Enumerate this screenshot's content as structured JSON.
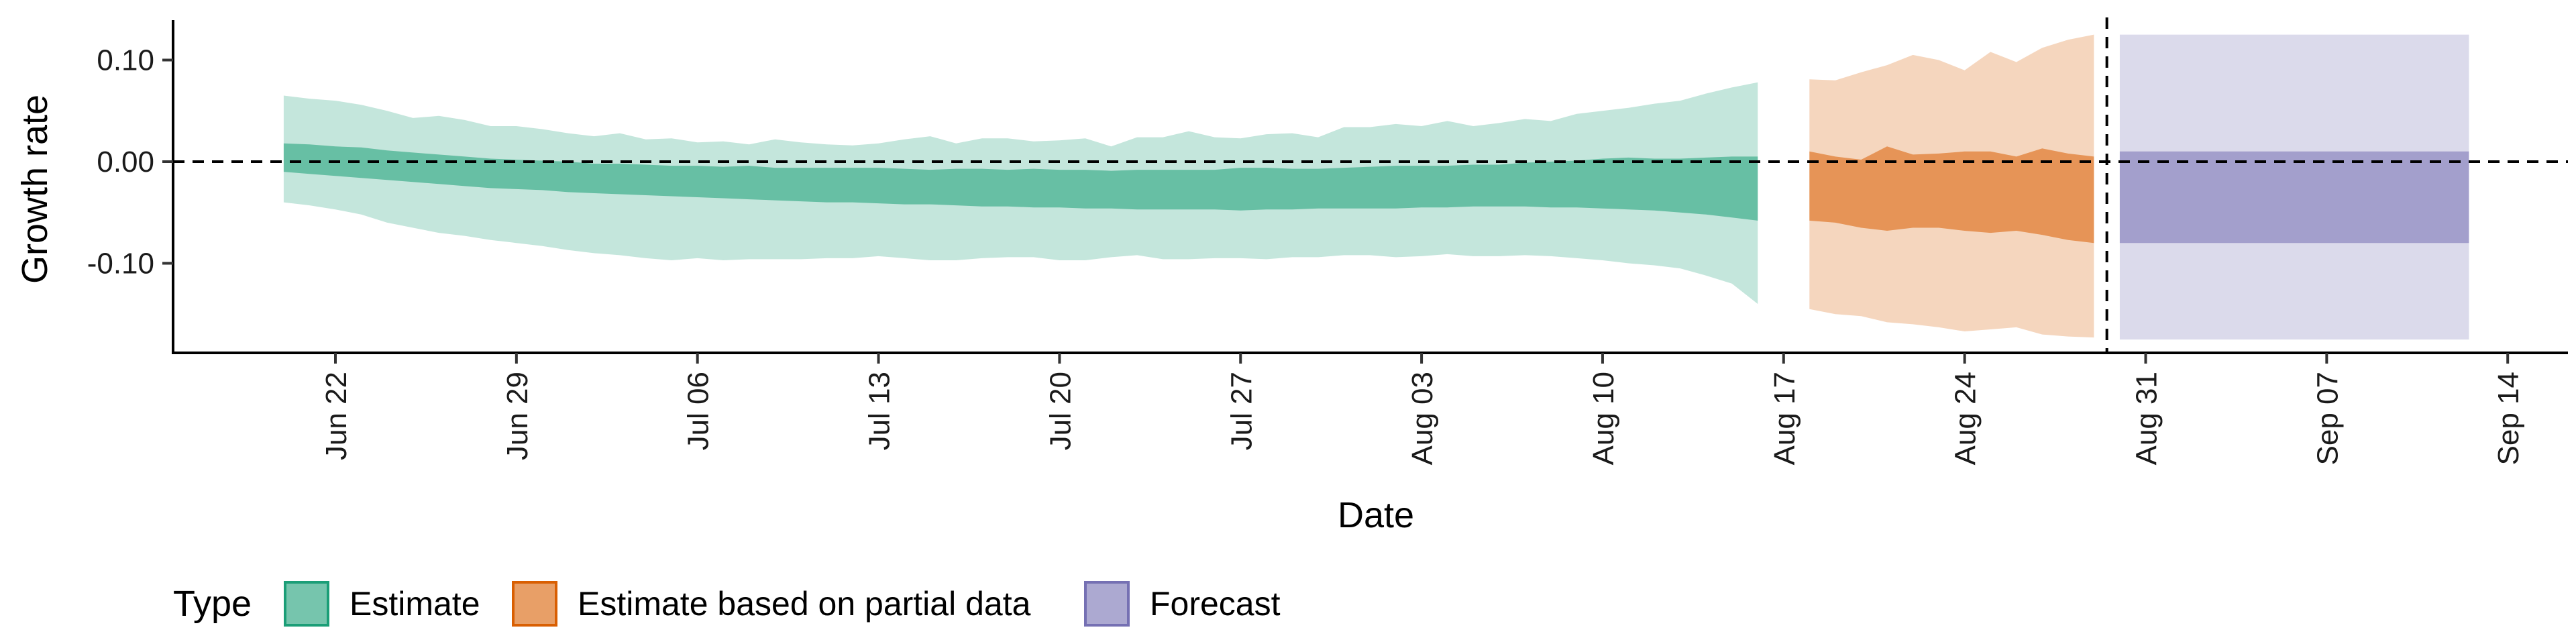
{
  "chart_data": {
    "type": "area",
    "title": "",
    "xlabel": "Date",
    "ylabel": "Growth rate",
    "ylim": [
      -0.19,
      0.14
    ],
    "y_ticks": [
      {
        "value": 0.1,
        "label": "0.10"
      },
      {
        "value": 0.0,
        "label": "0.00"
      },
      {
        "value": -0.1,
        "label": "-0.10"
      }
    ],
    "x_ticks": [
      {
        "day": 0,
        "label": "Jun 22"
      },
      {
        "day": 7,
        "label": "Jun 29"
      },
      {
        "day": 14,
        "label": "Jul 06"
      },
      {
        "day": 21,
        "label": "Jul 13"
      },
      {
        "day": 28,
        "label": "Jul 20"
      },
      {
        "day": 35,
        "label": "Jul 27"
      },
      {
        "day": 42,
        "label": "Aug 03"
      },
      {
        "day": 49,
        "label": "Aug 10"
      },
      {
        "day": 56,
        "label": "Aug 17"
      },
      {
        "day": 63,
        "label": "Aug 24"
      },
      {
        "day": 70,
        "label": "Aug 31"
      },
      {
        "day": 77,
        "label": "Sep 07"
      },
      {
        "day": 84,
        "label": "Sep 14"
      }
    ],
    "xlim_days": [
      -6.2,
      86.5
    ],
    "horizontal_reference_line": 0.0,
    "vertical_reference_line_day": 68.5,
    "series": [
      {
        "name": "Estimate",
        "fill": "#1b9e77",
        "x_days": [
          -2,
          -1,
          0,
          1,
          2,
          3,
          4,
          5,
          6,
          7,
          8,
          9,
          10,
          11,
          12,
          13,
          14,
          15,
          16,
          17,
          18,
          19,
          20,
          21,
          22,
          23,
          24,
          25,
          26,
          27,
          28,
          29,
          30,
          31,
          32,
          33,
          34,
          35,
          36,
          37,
          38,
          39,
          40,
          41,
          42,
          43,
          44,
          45,
          46,
          47,
          48,
          49,
          50,
          51,
          52,
          53,
          54,
          55
        ],
        "outer_upper": [
          0.065,
          0.062,
          0.06,
          0.056,
          0.05,
          0.043,
          0.045,
          0.041,
          0.035,
          0.035,
          0.032,
          0.028,
          0.025,
          0.028,
          0.022,
          0.023,
          0.019,
          0.02,
          0.017,
          0.022,
          0.019,
          0.017,
          0.016,
          0.018,
          0.022,
          0.025,
          0.018,
          0.023,
          0.023,
          0.02,
          0.021,
          0.023,
          0.015,
          0.024,
          0.024,
          0.03,
          0.024,
          0.023,
          0.027,
          0.028,
          0.024,
          0.034,
          0.034,
          0.037,
          0.035,
          0.04,
          0.035,
          0.038,
          0.042,
          0.04,
          0.047,
          0.05,
          0.053,
          0.057,
          0.06,
          0.067,
          0.073,
          0.078
        ],
        "outer_lower": [
          -0.04,
          -0.043,
          -0.047,
          -0.052,
          -0.06,
          -0.065,
          -0.07,
          -0.073,
          -0.077,
          -0.08,
          -0.083,
          -0.087,
          -0.09,
          -0.092,
          -0.095,
          -0.097,
          -0.095,
          -0.097,
          -0.096,
          -0.096,
          -0.096,
          -0.095,
          -0.095,
          -0.093,
          -0.095,
          -0.097,
          -0.097,
          -0.095,
          -0.094,
          -0.094,
          -0.097,
          -0.097,
          -0.094,
          -0.092,
          -0.096,
          -0.096,
          -0.095,
          -0.095,
          -0.096,
          -0.094,
          -0.094,
          -0.092,
          -0.092,
          -0.094,
          -0.093,
          -0.091,
          -0.093,
          -0.093,
          -0.092,
          -0.093,
          -0.095,
          -0.097,
          -0.1,
          -0.102,
          -0.105,
          -0.112,
          -0.12,
          -0.14
        ],
        "inner_upper": [
          0.018,
          0.017,
          0.015,
          0.014,
          0.011,
          0.009,
          0.007,
          0.005,
          0.003,
          0.002,
          0.001,
          0.0,
          -0.002,
          -0.002,
          -0.003,
          -0.004,
          -0.004,
          -0.005,
          -0.004,
          -0.006,
          -0.006,
          -0.006,
          -0.006,
          -0.006,
          -0.007,
          -0.008,
          -0.007,
          -0.007,
          -0.008,
          -0.007,
          -0.008,
          -0.008,
          -0.009,
          -0.008,
          -0.008,
          -0.008,
          -0.008,
          -0.006,
          -0.006,
          -0.007,
          -0.007,
          -0.006,
          -0.005,
          -0.004,
          -0.004,
          -0.004,
          -0.003,
          -0.003,
          -0.001,
          0.0,
          0.001,
          0.003,
          0.004,
          0.003,
          0.003,
          0.004,
          0.005,
          0.005
        ],
        "inner_lower": [
          -0.01,
          -0.012,
          -0.014,
          -0.016,
          -0.018,
          -0.02,
          -0.022,
          -0.024,
          -0.026,
          -0.027,
          -0.028,
          -0.03,
          -0.031,
          -0.032,
          -0.033,
          -0.034,
          -0.035,
          -0.036,
          -0.037,
          -0.038,
          -0.039,
          -0.04,
          -0.04,
          -0.041,
          -0.042,
          -0.042,
          -0.043,
          -0.044,
          -0.044,
          -0.045,
          -0.045,
          -0.046,
          -0.046,
          -0.047,
          -0.047,
          -0.047,
          -0.047,
          -0.048,
          -0.047,
          -0.047,
          -0.046,
          -0.046,
          -0.046,
          -0.046,
          -0.045,
          -0.045,
          -0.044,
          -0.044,
          -0.044,
          -0.045,
          -0.045,
          -0.046,
          -0.047,
          -0.048,
          -0.05,
          -0.052,
          -0.055,
          -0.058
        ]
      },
      {
        "name": "Estimate based on partial data",
        "fill": "#d95f02",
        "x_days": [
          57,
          58,
          59,
          60,
          61,
          62,
          63,
          64,
          65,
          66,
          67,
          68
        ],
        "outer_upper": [
          0.081,
          0.08,
          0.088,
          0.095,
          0.105,
          0.1,
          0.09,
          0.108,
          0.098,
          0.112,
          0.12,
          0.125
        ],
        "outer_lower": [
          -0.145,
          -0.15,
          -0.152,
          -0.158,
          -0.16,
          -0.163,
          -0.167,
          -0.165,
          -0.163,
          -0.17,
          -0.172,
          -0.173
        ],
        "inner_upper": [
          0.01,
          0.005,
          0.002,
          0.015,
          0.007,
          0.008,
          0.01,
          0.01,
          0.005,
          0.013,
          0.008,
          0.005
        ],
        "inner_lower": [
          -0.058,
          -0.06,
          -0.065,
          -0.068,
          -0.065,
          -0.065,
          -0.068,
          -0.07,
          -0.068,
          -0.072,
          -0.077,
          -0.08
        ]
      },
      {
        "name": "Forecast",
        "fill": "#7570b3",
        "x_days": [
          69,
          82.5
        ],
        "outer_upper": [
          0.125,
          0.125
        ],
        "outer_lower": [
          -0.175,
          -0.175
        ],
        "inner_upper": [
          0.01,
          0.01
        ],
        "inner_lower": [
          -0.08,
          -0.08
        ]
      }
    ],
    "legend": {
      "position": "bottom-left",
      "title": "Type",
      "entries": [
        {
          "label": "Estimate",
          "fill": "#1b9e77",
          "stroke": "#1b9e77"
        },
        {
          "label": "Estimate based on partial data",
          "fill": "#d95f02",
          "stroke": "#d95f02"
        },
        {
          "label": "Forecast",
          "fill": "#7570b3",
          "stroke": "#7570b3"
        }
      ]
    }
  }
}
